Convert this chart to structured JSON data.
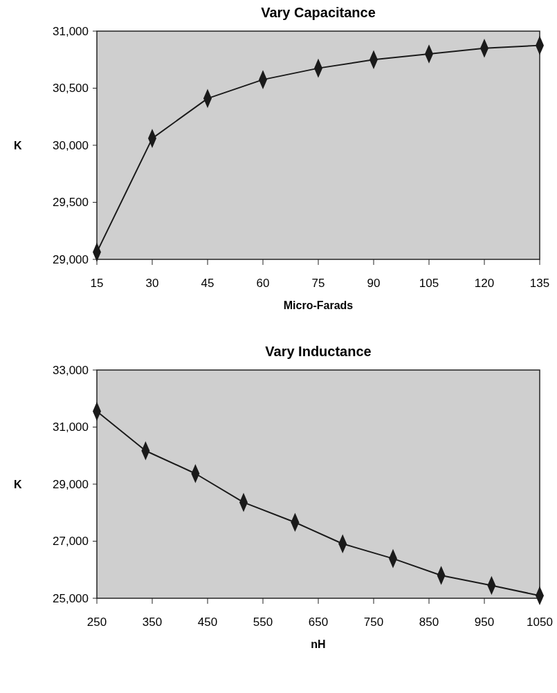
{
  "chart_data": [
    {
      "type": "line",
      "title": "Vary Capacitance",
      "xlabel": "Micro-Farads",
      "ylabel": "K",
      "x": [
        15,
        30,
        45,
        60,
        75,
        90,
        105,
        120,
        135
      ],
      "series": [
        {
          "color": "#1a1a1a",
          "values": [
            29063,
            30060,
            30410,
            30575,
            30675,
            30750,
            30800,
            30850,
            30875
          ]
        }
      ],
      "xlim": [
        15,
        135
      ],
      "xticks": [
        15,
        30,
        45,
        60,
        75,
        90,
        105,
        120,
        135
      ],
      "ylim": [
        29000,
        31000
      ],
      "yticks": [
        {
          "value": 29000,
          "label": "29,000"
        },
        {
          "value": 29500,
          "label": "29,500"
        },
        {
          "value": 30000,
          "label": "30,000"
        },
        {
          "value": 30500,
          "label": "30,500"
        },
        {
          "value": 31000,
          "label": "31,000"
        }
      ],
      "marker": "diamond",
      "grid": false
    },
    {
      "type": "line",
      "title": "Vary Inductance",
      "xlabel": "nH",
      "ylabel": "K",
      "x": [
        250,
        338,
        428,
        515,
        608,
        694,
        785,
        872,
        963,
        1050
      ],
      "series": [
        {
          "color": "#1a1a1a",
          "values": [
            31550,
            30170,
            29370,
            28360,
            27660,
            26910,
            26390,
            25800,
            25450,
            25090
          ]
        }
      ],
      "xlim": [
        250,
        1050
      ],
      "xticks": [
        250,
        350,
        450,
        550,
        650,
        750,
        850,
        950,
        1050
      ],
      "ylim": [
        25000,
        33000
      ],
      "yticks": [
        {
          "value": 25000,
          "label": "25,000"
        },
        {
          "value": 27000,
          "label": "27,000"
        },
        {
          "value": 29000,
          "label": "29,000"
        },
        {
          "value": 31000,
          "label": "31,000"
        },
        {
          "value": 33000,
          "label": "33,000"
        }
      ],
      "marker": "diamond",
      "grid": false
    }
  ]
}
